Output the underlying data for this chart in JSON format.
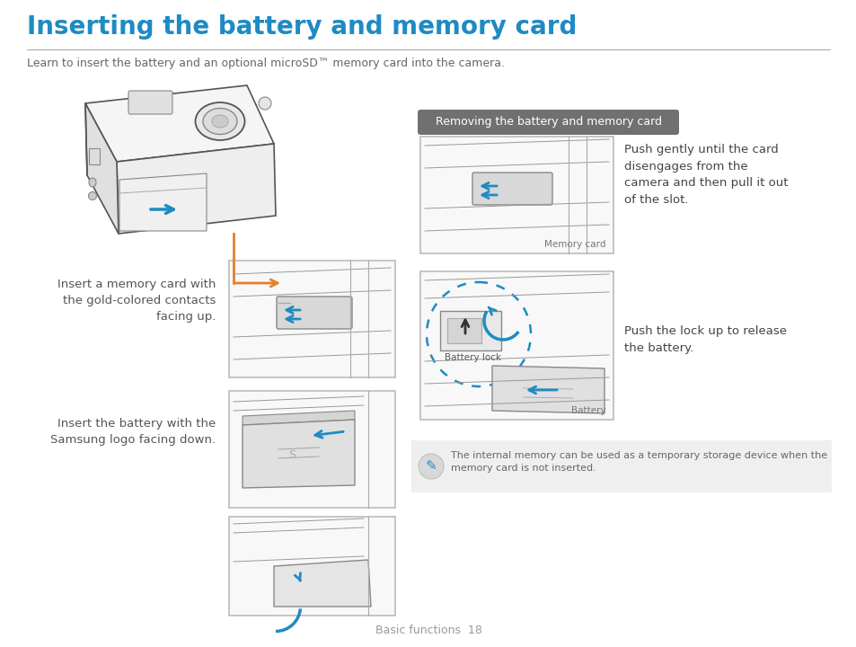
{
  "title": "Inserting the battery and memory card",
  "subtitle": "Learn to insert the battery and an optional microSD™ memory card into the camera.",
  "title_color": "#1e8bc3",
  "title_fontsize": 20,
  "subtitle_fontsize": 9,
  "subtitle_color": "#666666",
  "footer_text": "Basic functions  18",
  "footer_color": "#999999",
  "removing_section_label": "Removing the battery and memory card",
  "removing_label_bg": "#707070",
  "removing_label_color": "#ffffff",
  "left_captions": [
    "Insert a memory card with\nthe gold-colored contacts\nfacing up.",
    "Insert the battery with the\nSamsung logo facing down."
  ],
  "right_captions_text": [
    "Push gently until the card\ndisengages from the\ncamera and then pull it out\nof the slot.",
    "Push the lock up to release\nthe battery."
  ],
  "memory_card_label": "Memory card",
  "battery_label": "Battery",
  "battery_lock_label": "Battery lock",
  "note_text": "The internal memory can be used as a temporary storage device when the\nmemory card is not inserted.",
  "note_bg": "#efefef",
  "note_color": "#666666",
  "background_color": "#ffffff",
  "line_color": "#333333",
  "blue_color": "#1e8bc3",
  "orange_color": "#e08030",
  "gray_color": "#aaaaaa",
  "diagram_border": "#bbbbbb",
  "diagram_bg": "#f8f8f8"
}
